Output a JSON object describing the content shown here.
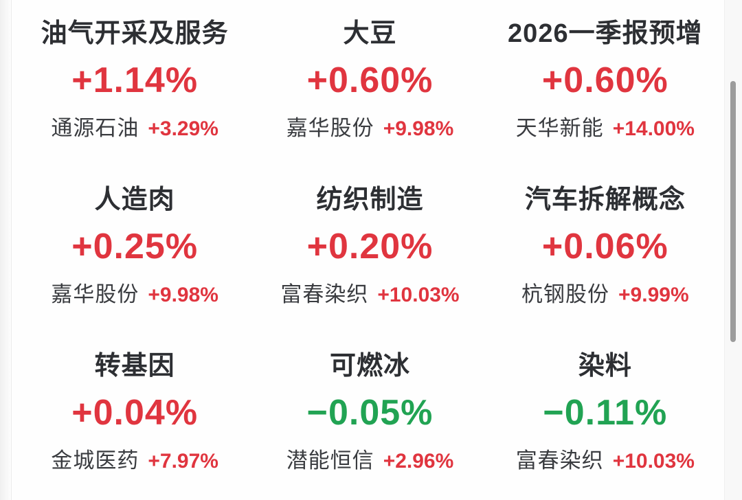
{
  "colors": {
    "up": "#e0353f",
    "down": "#21a353",
    "title": "#2d2f33",
    "stock": "#3a3c40",
    "bg": "#fefefe"
  },
  "scrollbar": {
    "thumb_color": "#9c9c9c"
  },
  "sectors": [
    {
      "name": "油气开采及服务",
      "change": "+1.14%",
      "direction": "up",
      "stock": {
        "name": "通源石油",
        "change": "+3.29%",
        "direction": "up"
      }
    },
    {
      "name": "大豆",
      "change": "+0.60%",
      "direction": "up",
      "stock": {
        "name": "嘉华股份",
        "change": "+9.98%",
        "direction": "up"
      }
    },
    {
      "name": "2026一季报预增",
      "change": "+0.60%",
      "direction": "up",
      "stock": {
        "name": "天华新能",
        "change": "+14.00%",
        "direction": "up"
      }
    },
    {
      "name": "人造肉",
      "change": "+0.25%",
      "direction": "up",
      "stock": {
        "name": "嘉华股份",
        "change": "+9.98%",
        "direction": "up"
      }
    },
    {
      "name": "纺织制造",
      "change": "+0.20%",
      "direction": "up",
      "stock": {
        "name": "富春染织",
        "change": "+10.03%",
        "direction": "up"
      }
    },
    {
      "name": "汽车拆解概念",
      "change": "+0.06%",
      "direction": "up",
      "stock": {
        "name": "杭钢股份",
        "change": "+9.99%",
        "direction": "up"
      }
    },
    {
      "name": "转基因",
      "change": "+0.04%",
      "direction": "up",
      "stock": {
        "name": "金城医药",
        "change": "+7.97%",
        "direction": "up"
      }
    },
    {
      "name": "可燃冰",
      "change": "−0.05%",
      "direction": "down",
      "stock": {
        "name": "潜能恒信",
        "change": "+2.96%",
        "direction": "up"
      }
    },
    {
      "name": "染料",
      "change": "−0.11%",
      "direction": "down",
      "stock": {
        "name": "富春染织",
        "change": "+10.03%",
        "direction": "up"
      }
    }
  ]
}
